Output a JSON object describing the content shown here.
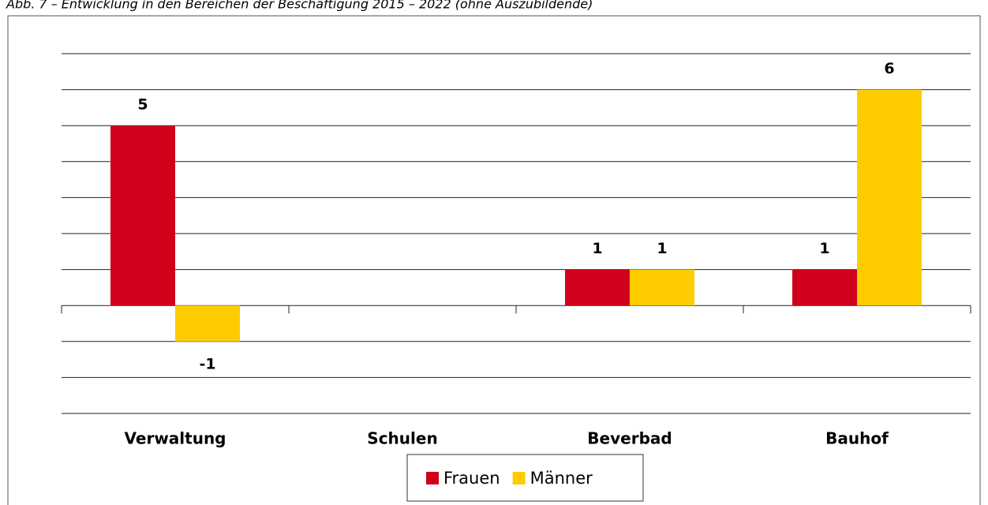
{
  "chart_data": {
    "type": "bar",
    "title": "Abb. 7 – Entwicklung in den Bereichen der Beschäftigung 2015 – 2022 (ohne Auszubildende)",
    "categories": [
      "Verwaltung",
      "Schulen",
      "Beverbad",
      "Bauhof"
    ],
    "series": [
      {
        "name": "Frauen",
        "color": "#d0021b",
        "values": [
          5,
          null,
          1,
          1
        ]
      },
      {
        "name": "Männer",
        "color": "#ffcc00",
        "values": [
          -1,
          null,
          1,
          6
        ]
      }
    ],
    "ylim": [
      -3,
      7
    ],
    "yticks": [
      -3,
      -2,
      -1,
      0,
      1,
      2,
      3,
      4,
      5,
      6,
      7
    ],
    "grid": true,
    "legend": "bottom"
  }
}
